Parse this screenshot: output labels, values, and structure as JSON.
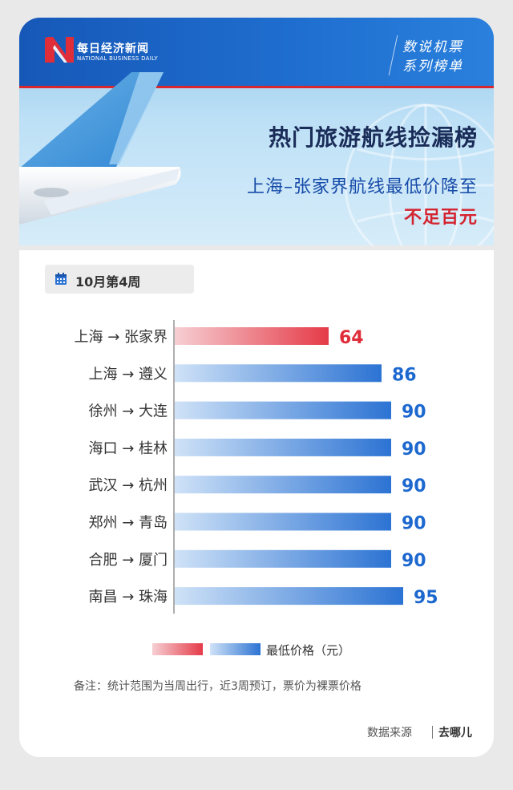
{
  "brand": {
    "name_cn": "每日经济新闻",
    "name_en": "NATIONAL BUSINESS DAILY"
  },
  "series": {
    "line1": "数说机票",
    "line2": "系列榜单"
  },
  "headline": "热门旅游航线捡漏榜",
  "subheadline": "上海–张家界航线最低价降至",
  "subheadline_red": "不足百元",
  "week": "10月第4周",
  "colors": {
    "highlight": "#e53b48",
    "bar": "#2c73d3",
    "highlight_text": "#e02d3a",
    "bar_text": "#1d68cf"
  },
  "chart_data": {
    "type": "bar",
    "orientation": "horizontal",
    "categories": [
      "上海 → 张家界",
      "上海 → 遵义",
      "徐州 → 大连",
      "海口 → 桂林",
      "武汉 → 杭州",
      "郑州 → 青岛",
      "合肥 → 厦门",
      "南昌 → 珠海"
    ],
    "values": [
      64,
      86,
      90,
      90,
      90,
      90,
      90,
      95
    ],
    "highlight_index": 0,
    "xlim": [
      0,
      100
    ],
    "grid": false
  },
  "legend": {
    "label": "最低价格（元）"
  },
  "note": "备注：统计范围为当周出行，近3周预订，票价为裸票价格",
  "source": {
    "label": "数据来源",
    "value": "去哪儿"
  }
}
